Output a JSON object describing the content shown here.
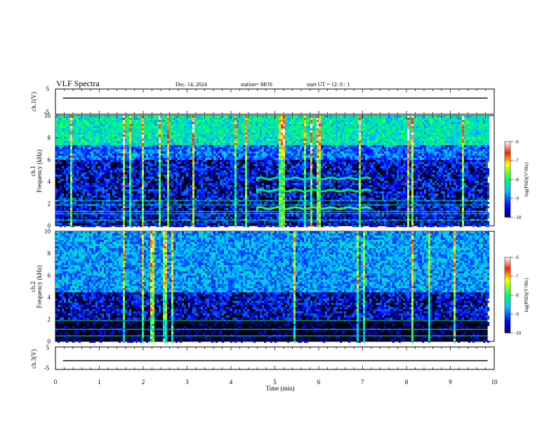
{
  "header": {
    "title": "VLF Spectra",
    "date": "Dec. 14, 2024",
    "station": "station= MOS",
    "start": "start  UT =   12: 0  : 1"
  },
  "chart_data": [
    {
      "type": "line",
      "panel": "ch1-voltage",
      "ylabel": "ch.1(V)",
      "ylim": [
        -5,
        5
      ],
      "yticks": [
        "5",
        "-5"
      ],
      "xlim": [
        0,
        10
      ],
      "series": [
        {
          "values": [
            1.4,
            1.4,
            1.4,
            1.4,
            1.4,
            1.4,
            1.4,
            1.4,
            1.4,
            1.4
          ]
        }
      ]
    },
    {
      "type": "heatmap",
      "panel": "ch1-spectrogram",
      "ylabel_top": "ch.1",
      "ylabel": "Frequency (kHz)",
      "ylim": [
        0,
        10
      ],
      "yticks": [
        "0",
        "2",
        "4",
        "6",
        "8",
        "10"
      ],
      "xlim": [
        0,
        9.85
      ],
      "colorbar": {
        "label": "log(PSD)(V²/Hz)",
        "range": [
          -10,
          -6
        ],
        "ticks": [
          "-6",
          "-7",
          "-8",
          "-9",
          "-10"
        ]
      },
      "bands_kHz": [
        0.5,
        1.1,
        1.3,
        1.9,
        2.3,
        8.8
      ],
      "emission": {
        "t_start": 4.6,
        "t_end": 7.2,
        "freqs_kHz": [
          1.6,
          3.2,
          4.3
        ]
      }
    },
    {
      "type": "heatmap",
      "panel": "ch2-spectrogram",
      "ylabel_top": "ch.2",
      "ylabel": "Frequency (kHz)",
      "ylim": [
        0,
        10
      ],
      "yticks": [
        "0",
        "2",
        "4",
        "6",
        "8",
        "10"
      ],
      "xlim": [
        0,
        9.85
      ],
      "colorbar": {
        "label": "log(PSD)(V²/Hz)",
        "range": [
          -10,
          -6
        ],
        "ticks": [
          "-6",
          "-7",
          "-8",
          "-9",
          "-10"
        ]
      },
      "bands_kHz": [
        0.5,
        1.1,
        1.9
      ]
    },
    {
      "type": "line",
      "panel": "ch3-voltage",
      "ylabel": "ch.3(V)",
      "ylim": [
        -5,
        5
      ],
      "yticks": [
        "5",
        "-5"
      ],
      "xlim": [
        0,
        10
      ],
      "series": [
        {
          "values": [
            -1.1,
            -1.1,
            -1.1,
            -1.1,
            -1.1,
            -1.1,
            -1.1,
            -1.1,
            -1.1,
            -1.1
          ]
        }
      ]
    }
  ],
  "xaxis": {
    "label": "Time  (min)",
    "ticks": [
      "0",
      "1",
      "2",
      "3",
      "4",
      "5",
      "6",
      "7",
      "8",
      "9",
      "10"
    ]
  }
}
